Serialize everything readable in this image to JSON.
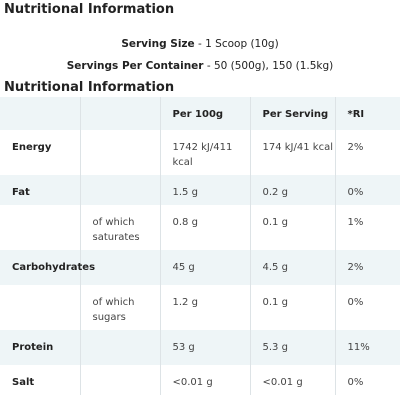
{
  "heading": "Nutritional Information",
  "serving_size": {
    "label": "Serving Size",
    "value": "- 1 Scoop (10g)"
  },
  "servings_per_container": {
    "label": "Servings Per Container",
    "value": "- 50 (500g), 150 (1.5kg)"
  },
  "table": {
    "title": "Nutritional Information",
    "columns": [
      "Per 100g",
      "Per Serving",
      "*RI"
    ],
    "rows": [
      {
        "nutrient": "Energy",
        "values": [
          "1742 kJ/411 kcal",
          "174 kJ/41 kcal",
          "2%"
        ]
      },
      {
        "nutrient": "Fat",
        "values": [
          "1.5 g",
          "0.2 g",
          "0%"
        ]
      },
      {
        "sub": "of which saturates",
        "values": [
          "0.8 g",
          "0.1 g",
          "1%"
        ]
      },
      {
        "nutrient": "Carbohydrates",
        "values": [
          "45 g",
          "4.5 g",
          "2%"
        ]
      },
      {
        "sub": "of which sugars",
        "values": [
          "1.2 g",
          "0.1 g",
          "0%"
        ]
      },
      {
        "nutrient": "Protein",
        "values": [
          "53 g",
          "5.3 g",
          "11%"
        ]
      },
      {
        "nutrient": "Salt",
        "values": [
          "<0.01 g",
          "<0.01 g",
          "0%"
        ]
      }
    ]
  }
}
